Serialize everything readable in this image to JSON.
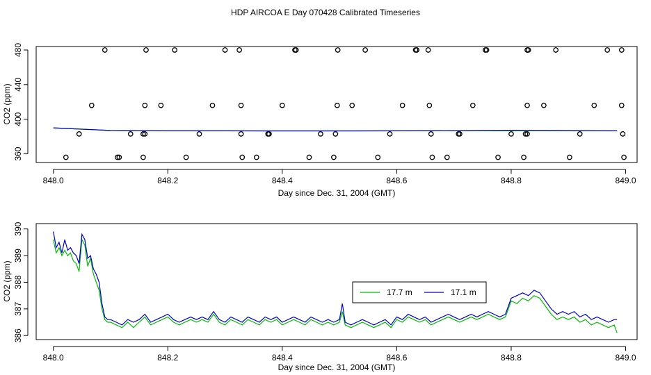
{
  "title": "HDP AIRCOA E  Day 070428  Calibrated Timeseries",
  "chart_data": [
    {
      "type": "scatter",
      "xlabel": "Day since Dec. 31, 2004 (GMT)",
      "ylabel": "CO2 (ppm)",
      "xlim": [
        847.97,
        849.02
      ],
      "ylim": [
        350,
        484
      ],
      "xticks": [
        "848.0",
        "848.2",
        "848.4",
        "848.6",
        "848.8",
        "849.0"
      ],
      "yticks": [
        "360",
        "400",
        "440",
        "480"
      ],
      "xtick_values": [
        848.0,
        848.2,
        848.4,
        848.6,
        848.8,
        849.0
      ],
      "ytick_values": [
        360,
        400,
        440,
        480
      ],
      "points_480": [
        848.09,
        848.162,
        848.212,
        848.3,
        848.325,
        848.422,
        848.424,
        848.497,
        848.545,
        848.633,
        848.635,
        848.655,
        848.755,
        848.757,
        848.828,
        848.83,
        848.878,
        848.968,
        848.993
      ],
      "points_416": [
        848.067,
        848.16,
        848.188,
        848.278,
        848.328,
        848.4,
        848.496,
        848.522,
        848.61,
        848.657,
        848.733,
        848.828,
        848.857,
        848.945,
        848.993
      ],
      "points_383": [
        848.045,
        848.135,
        848.157,
        848.16,
        848.255,
        848.328,
        848.375,
        848.377,
        848.467,
        848.493,
        848.588,
        848.66,
        848.708,
        848.71,
        848.8,
        848.825,
        848.828,
        848.92,
        848.995
      ],
      "points_356": [
        848.022,
        848.112,
        848.115,
        848.157,
        848.232,
        848.33,
        848.355,
        848.447,
        848.49,
        848.567,
        848.662,
        848.688,
        848.777,
        848.822,
        848.902,
        848.997
      ],
      "series": [
        {
          "name": "17.7 m",
          "color": "#00bb00",
          "x": [
            848.0,
            848.1,
            848.2,
            848.3,
            848.4,
            848.5,
            848.6,
            848.7,
            848.8,
            848.9,
            848.985
          ],
          "y": [
            390,
            387,
            386.6,
            386.6,
            386.5,
            386.5,
            386.6,
            386.7,
            386.8,
            386.7,
            386.6
          ]
        },
        {
          "name": "17.1 m",
          "color": "#0000cc",
          "x": [
            848.0,
            848.1,
            848.2,
            848.3,
            848.4,
            848.5,
            848.6,
            848.7,
            848.8,
            848.9,
            848.985
          ],
          "y": [
            390,
            387,
            386.6,
            386.6,
            386.5,
            386.5,
            386.6,
            386.8,
            387.2,
            386.9,
            386.6
          ]
        }
      ]
    },
    {
      "type": "line",
      "xlabel": "Day since Dec. 31, 2004 (GMT)",
      "ylabel": "CO2 (ppm)",
      "xlim": [
        847.97,
        849.02
      ],
      "ylim": [
        385.85,
        390.2
      ],
      "xticks": [
        "848.0",
        "848.2",
        "848.4",
        "848.6",
        "848.8",
        "849.0"
      ],
      "yticks": [
        "386",
        "387",
        "388",
        "389",
        "390"
      ],
      "xtick_values": [
        848.0,
        848.2,
        848.4,
        848.6,
        848.8,
        849.0
      ],
      "ytick_values": [
        386,
        387,
        388,
        389,
        390
      ],
      "legend": "center-right",
      "series": [
        {
          "name": "17.7 m",
          "color": "#00bb00",
          "x": [
            848.0,
            848.005,
            848.01,
            848.015,
            848.02,
            848.025,
            848.03,
            848.035,
            848.04,
            848.045,
            848.05,
            848.055,
            848.06,
            848.065,
            848.07,
            848.075,
            848.08,
            848.085,
            848.09,
            848.095,
            848.1,
            848.11,
            848.12,
            848.13,
            848.14,
            848.15,
            848.16,
            848.17,
            848.18,
            848.19,
            848.2,
            848.21,
            848.22,
            848.23,
            848.24,
            848.25,
            848.26,
            848.27,
            848.28,
            848.29,
            848.3,
            848.31,
            848.32,
            848.33,
            848.34,
            848.35,
            848.36,
            848.37,
            848.38,
            848.39,
            848.4,
            848.41,
            848.42,
            848.43,
            848.44,
            848.45,
            848.46,
            848.47,
            848.48,
            848.49,
            848.5,
            848.505,
            848.51,
            848.52,
            848.53,
            848.54,
            848.55,
            848.56,
            848.57,
            848.58,
            848.59,
            848.6,
            848.61,
            848.62,
            848.63,
            848.64,
            848.65,
            848.66,
            848.67,
            848.68,
            848.69,
            848.7,
            848.71,
            848.72,
            848.73,
            848.74,
            848.75,
            848.76,
            848.77,
            848.78,
            848.79,
            848.8,
            848.81,
            848.82,
            848.83,
            848.84,
            848.85,
            848.86,
            848.87,
            848.88,
            848.89,
            848.9,
            848.91,
            848.92,
            848.93,
            848.94,
            848.95,
            848.96,
            848.97,
            848.98,
            848.985
          ],
          "y": [
            389.6,
            389.1,
            389.3,
            389.0,
            389.2,
            389.0,
            389.1,
            388.8,
            388.7,
            388.4,
            389.6,
            389.4,
            388.6,
            388.9,
            388.3,
            388.0,
            387.7,
            387.0,
            386.6,
            386.5,
            386.5,
            386.4,
            386.3,
            386.5,
            386.3,
            386.5,
            386.7,
            386.4,
            386.5,
            386.6,
            386.7,
            386.5,
            386.4,
            386.5,
            386.6,
            386.5,
            386.6,
            386.5,
            386.8,
            386.5,
            386.4,
            386.6,
            386.5,
            386.4,
            386.6,
            386.5,
            386.4,
            386.6,
            386.5,
            386.6,
            386.4,
            386.5,
            386.6,
            386.5,
            386.4,
            386.6,
            386.5,
            386.4,
            386.5,
            386.4,
            386.5,
            386.9,
            386.4,
            386.3,
            386.4,
            386.5,
            386.4,
            386.3,
            386.4,
            386.5,
            386.3,
            386.6,
            386.5,
            386.7,
            386.6,
            386.5,
            386.6,
            386.4,
            386.5,
            386.6,
            386.7,
            386.6,
            386.5,
            386.6,
            386.7,
            386.6,
            386.7,
            386.8,
            386.7,
            386.6,
            386.7,
            387.3,
            387.2,
            387.4,
            387.3,
            387.5,
            387.4,
            387.1,
            386.8,
            386.6,
            386.7,
            386.6,
            386.7,
            386.5,
            386.6,
            386.4,
            386.5,
            386.4,
            386.3,
            386.4,
            386.1
          ]
        },
        {
          "name": "17.1 m",
          "color": "#0000cc",
          "x": [
            848.0,
            848.005,
            848.01,
            848.015,
            848.02,
            848.025,
            848.03,
            848.035,
            848.04,
            848.045,
            848.05,
            848.055,
            848.06,
            848.065,
            848.07,
            848.075,
            848.08,
            848.085,
            848.09,
            848.095,
            848.1,
            848.11,
            848.12,
            848.13,
            848.14,
            848.15,
            848.16,
            848.17,
            848.18,
            848.19,
            848.2,
            848.21,
            848.22,
            848.23,
            848.24,
            848.25,
            848.26,
            848.27,
            848.28,
            848.29,
            848.3,
            848.31,
            848.32,
            848.33,
            848.34,
            848.35,
            848.36,
            848.37,
            848.38,
            848.39,
            848.4,
            848.41,
            848.42,
            848.43,
            848.44,
            848.45,
            848.46,
            848.47,
            848.48,
            848.49,
            848.5,
            848.505,
            848.51,
            848.52,
            848.53,
            848.54,
            848.55,
            848.56,
            848.57,
            848.58,
            848.59,
            848.6,
            848.61,
            848.62,
            848.63,
            848.64,
            848.65,
            848.66,
            848.67,
            848.68,
            848.69,
            848.7,
            848.71,
            848.72,
            848.73,
            848.74,
            848.75,
            848.76,
            848.77,
            848.78,
            848.79,
            848.8,
            848.81,
            848.82,
            848.83,
            848.84,
            848.85,
            848.86,
            848.87,
            848.88,
            848.89,
            848.9,
            848.91,
            848.92,
            848.93,
            848.94,
            848.95,
            848.96,
            848.97,
            848.98,
            848.985
          ],
          "y": [
            389.9,
            389.3,
            389.5,
            389.1,
            389.6,
            389.2,
            389.3,
            389.1,
            389.0,
            388.7,
            389.8,
            389.6,
            388.9,
            389.0,
            388.5,
            388.3,
            388.0,
            387.2,
            386.7,
            386.6,
            386.6,
            386.5,
            386.4,
            386.6,
            386.5,
            386.6,
            386.8,
            386.5,
            386.6,
            386.7,
            386.8,
            386.6,
            386.5,
            386.6,
            386.7,
            386.6,
            386.7,
            386.6,
            386.9,
            386.6,
            386.5,
            386.7,
            386.6,
            386.5,
            386.7,
            386.6,
            386.5,
            386.7,
            386.6,
            386.7,
            386.5,
            386.6,
            386.7,
            386.6,
            386.5,
            386.7,
            386.6,
            386.5,
            386.6,
            386.5,
            386.6,
            387.2,
            386.5,
            386.4,
            386.5,
            386.6,
            386.5,
            386.4,
            386.5,
            386.6,
            386.4,
            386.7,
            386.6,
            386.8,
            386.7,
            386.6,
            386.7,
            386.5,
            386.6,
            386.7,
            386.8,
            386.7,
            386.6,
            386.7,
            386.8,
            386.7,
            386.8,
            386.9,
            386.8,
            386.7,
            386.8,
            387.4,
            387.5,
            387.6,
            387.5,
            387.7,
            387.6,
            387.3,
            387.0,
            386.8,
            386.9,
            386.8,
            386.9,
            386.7,
            386.8,
            386.6,
            386.7,
            386.6,
            386.5,
            386.6,
            386.6
          ]
        }
      ]
    }
  ]
}
